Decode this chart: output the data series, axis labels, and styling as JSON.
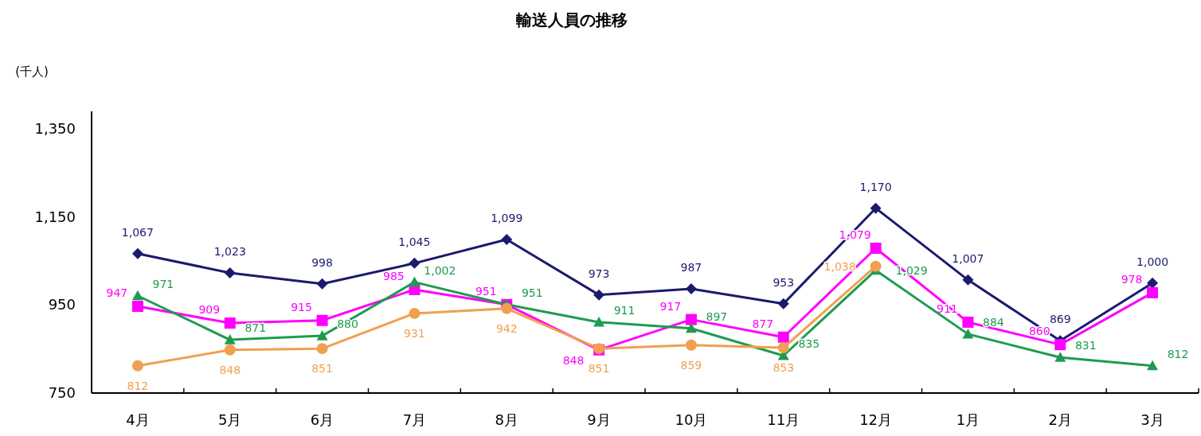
{
  "chart_data": {
    "type": "line",
    "title": "輸送人員の推移",
    "ylabel": "(千人)",
    "categories": [
      "4月",
      "5月",
      "6月",
      "7月",
      "8月",
      "9月",
      "10月",
      "11月",
      "12月",
      "1月",
      "2月",
      "3月"
    ],
    "ylim": [
      750,
      1390
    ],
    "yticks": [
      {
        "value": 750,
        "label": "750"
      },
      {
        "value": 950,
        "label": "950"
      },
      {
        "value": 1150,
        "label": "1,150"
      },
      {
        "value": 1350,
        "label": "1,350"
      }
    ],
    "grid": false,
    "line_style": "solid",
    "series": [
      {
        "color": "#1a1a6e",
        "marker": "diamond",
        "values": [
          1067,
          1023,
          998,
          1045,
          1099,
          973,
          987,
          953,
          1170,
          1007,
          869,
          1000
        ],
        "value_labels": [
          "1,067",
          "1,023",
          "998",
          "1,045",
          "1,099",
          "973",
          "987",
          "953",
          "1,170",
          "1,007",
          "869",
          "1,000"
        ]
      },
      {
        "color": "#ff00ff",
        "marker": "square",
        "values": [
          947,
          909,
          915,
          985,
          951,
          848,
          917,
          877,
          1079,
          911,
          860,
          978
        ],
        "value_labels": [
          "947",
          "909",
          "915",
          "985",
          "951",
          "848",
          "917",
          "877",
          "1,079",
          "911",
          "860",
          "978"
        ]
      },
      {
        "color": "#1f9b4f",
        "marker": "triangle",
        "values": [
          971,
          871,
          880,
          1002,
          951,
          911,
          897,
          835,
          1029,
          884,
          831,
          812
        ],
        "value_labels": [
          "971",
          "871",
          "880",
          "1,002",
          "951",
          "911",
          "897",
          "835",
          "1,029",
          "884",
          "831",
          "812"
        ]
      },
      {
        "color": "#f0a050",
        "marker": "circle",
        "values": [
          812,
          848,
          851,
          931,
          942,
          851,
          859,
          853,
          1038,
          null,
          null,
          null
        ],
        "value_labels": [
          "812",
          "848",
          "851",
          "931",
          "942",
          "851",
          "859",
          "853",
          "1,038",
          null,
          null,
          null
        ]
      }
    ]
  }
}
